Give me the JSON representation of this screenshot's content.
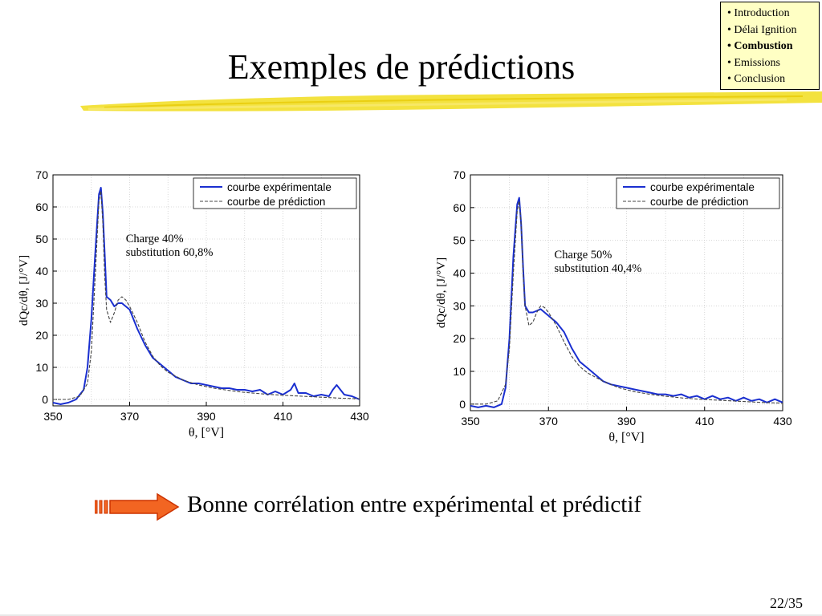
{
  "slide": {
    "title": "Exemples de prédictions",
    "conclusion": "Bonne corrélation entre expérimental et prédictif",
    "page_number": "22/35"
  },
  "nav": {
    "items": [
      {
        "label": "• Introduction",
        "active": false
      },
      {
        "label": "• Délai Ignition",
        "active": false
      },
      {
        "label": "• Combustion",
        "active": true
      },
      {
        "label": "• Emissions",
        "active": false
      },
      {
        "label": "• Conclusion",
        "active": false
      }
    ],
    "background_color": "#ffffc4"
  },
  "colors": {
    "experimental": "#1a2fd0",
    "prediction": "#444444",
    "arrow_fill": "#f26522",
    "arrow_outline": "#cc3300",
    "brush": "#f2df2a"
  },
  "chart_data": [
    {
      "type": "line",
      "xlabel": "θ, [°V]",
      "ylabel": "dQc/dθ, [J/°V]",
      "xlim": [
        350,
        430
      ],
      "ylim": [
        -2,
        70
      ],
      "xticks": [
        350,
        370,
        390,
        410,
        430
      ],
      "yticks": [
        0,
        10,
        20,
        30,
        40,
        50,
        60,
        70
      ],
      "grid": true,
      "legend_position": "top-right",
      "annotation": [
        "Charge 40%",
        "substitution 60,8%"
      ],
      "series": [
        {
          "name": "courbe expérimentale",
          "x": [
            350,
            352,
            354,
            356,
            358,
            359,
            360,
            361,
            362,
            362.5,
            363,
            363.5,
            364,
            365,
            366,
            367,
            368,
            369,
            370,
            371,
            372,
            374,
            376,
            378,
            380,
            382,
            384,
            386,
            388,
            390,
            392,
            394,
            396,
            398,
            400,
            402,
            404,
            406,
            408,
            410,
            412,
            413,
            414,
            416,
            418,
            420,
            422,
            423,
            424,
            426,
            428,
            430
          ],
          "y": [
            -1,
            -1.5,
            -1,
            0,
            3,
            10,
            25,
            45,
            64,
            66,
            58,
            45,
            32,
            31,
            29,
            30,
            30,
            29,
            28,
            25,
            22,
            17,
            13,
            11,
            9,
            7,
            6,
            5,
            5,
            4.5,
            4,
            3.5,
            3.5,
            3,
            3,
            2.5,
            3,
            1.5,
            2.5,
            1.5,
            3,
            5,
            2,
            2,
            1,
            1.5,
            1,
            3,
            4.5,
            1.5,
            1,
            0
          ]
        },
        {
          "name": "courbe de prédiction",
          "x": [
            350,
            354,
            357,
            359,
            360,
            361,
            362,
            362.5,
            363,
            363.5,
            364,
            365,
            366,
            367,
            368,
            369,
            370,
            372,
            374,
            376,
            378,
            380,
            384,
            388,
            392,
            396,
            400,
            405,
            410,
            415,
            420,
            425,
            430
          ],
          "y": [
            0,
            0,
            1,
            5,
            15,
            38,
            62,
            65,
            55,
            38,
            28,
            24,
            27,
            31,
            32,
            31,
            29,
            24,
            18,
            13.5,
            10.5,
            8.5,
            6,
            4.5,
            3.5,
            2.8,
            2.2,
            1.7,
            1.3,
            1,
            0.7,
            0.4,
            0.2
          ]
        }
      ]
    },
    {
      "type": "line",
      "xlabel": "θ, [°V]",
      "ylabel": "dQc/dθ, [J/°V]",
      "xlim": [
        350,
        430
      ],
      "ylim": [
        -2,
        70
      ],
      "xticks": [
        350,
        370,
        390,
        410,
        430
      ],
      "yticks": [
        0,
        10,
        20,
        30,
        40,
        50,
        60,
        70
      ],
      "grid": true,
      "legend_position": "top-right",
      "annotation": [
        "Charge 50%",
        "substitution 40,4%"
      ],
      "series": [
        {
          "name": "courbe expérimentale",
          "x": [
            350,
            352,
            354,
            356,
            358,
            359,
            360,
            361,
            362,
            362.5,
            363,
            363.5,
            364,
            365,
            366,
            367,
            368,
            369,
            370,
            371,
            372,
            374,
            376,
            378,
            380,
            382,
            384,
            386,
            388,
            390,
            392,
            394,
            396,
            398,
            400,
            402,
            404,
            406,
            408,
            410,
            412,
            414,
            416,
            418,
            420,
            422,
            424,
            426,
            428,
            430
          ],
          "y": [
            -0.5,
            -1,
            -0.5,
            -1,
            0,
            5,
            20,
            45,
            61,
            63,
            55,
            42,
            30,
            28,
            28,
            28.5,
            29,
            28,
            27,
            26,
            25,
            22,
            17,
            13,
            11,
            9,
            7,
            6,
            5.5,
            5,
            4.5,
            4,
            3.5,
            3,
            3,
            2.5,
            3,
            2,
            2.5,
            1.5,
            2.5,
            1.5,
            2,
            1,
            2,
            1,
            1.5,
            0.5,
            1.5,
            0.5
          ]
        },
        {
          "name": "courbe de prédiction",
          "x": [
            350,
            354,
            357,
            359,
            360,
            361,
            362,
            362.5,
            363,
            363.5,
            364,
            365,
            366,
            367,
            368,
            369,
            370,
            372,
            374,
            376,
            378,
            380,
            384,
            388,
            392,
            396,
            400,
            405,
            410,
            415,
            420,
            425,
            430
          ],
          "y": [
            0,
            0,
            1,
            6,
            17,
            40,
            59,
            62,
            55,
            40,
            30,
            24,
            25,
            28,
            30,
            29.5,
            28,
            24,
            19,
            14.5,
            11.5,
            9.5,
            7,
            5,
            3.8,
            3,
            2.4,
            1.8,
            1.4,
            1.1,
            0.8,
            0.5,
            0.3
          ]
        }
      ]
    }
  ]
}
